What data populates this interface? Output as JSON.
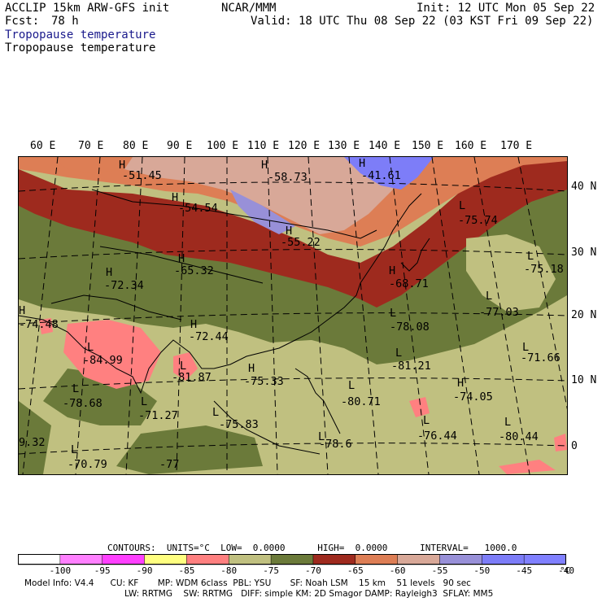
{
  "header": {
    "model": "ACCLIP 15km ARW-GFS init",
    "org": "NCAR/MMM",
    "init": "Init: 12 UTC Mon 05 Sep 22",
    "fcst_label": "Fcst:",
    "fcst_value": "78 h",
    "valid": "Valid: 18 UTC Thu 08 Sep 22 (03 KST Fri 09 Sep 22)",
    "field_title_1": "Tropopause temperature",
    "field_title_2": "Tropopause temperature"
  },
  "longitude_labels": [
    "60 E",
    "70 E",
    "80 E",
    "90 E",
    "100 E",
    "110 E",
    "120 E",
    "130 E",
    "140 E",
    "150 E",
    "160 E",
    "170 E"
  ],
  "latitude_labels": [
    "40 N",
    "30 N",
    "20 N",
    "10 N",
    "0"
  ],
  "map_labels": {
    "highs": [
      "H",
      "H",
      "H",
      "H",
      "H",
      "H",
      "H",
      "H",
      "H",
      "H",
      "H",
      "H"
    ],
    "lows": [
      "L",
      "L",
      "L",
      "L",
      "L",
      "L",
      "L",
      "L",
      "L",
      "L",
      "L",
      "L",
      "L",
      "L",
      "L",
      "L"
    ],
    "values": [
      "-51.45",
      "-58.73",
      "-41.61",
      "-54.54",
      "-55.22",
      "-65.32",
      "-72.34",
      "-75.74",
      "-75.18",
      "-68.71",
      "-77.03",
      "-74.48",
      "-72.44",
      "-78.08",
      "-84.99",
      "-81.87",
      "-75.33",
      "-81.21",
      "-71.66",
      "-78.68",
      "-71.27",
      "-80.71",
      "-74.05",
      "-75.83",
      "-76.44",
      "-80.44",
      "-78.6",
      "-70.79",
      "9.32",
      "-77"
    ]
  },
  "colorbar": {
    "contours_line": "CONTOURS:  UNITS=°C  LOW=  0.0000      HIGH=  0.0000      INTERVAL=   1000.0",
    "tick_labels": [
      "-100",
      "-95",
      "-90",
      "-85",
      "-80",
      "-75",
      "-70",
      "-65",
      "-60",
      "-55",
      "-50",
      "-45",
      "-40"
    ],
    "unit": "°C",
    "colors": [
      "#ffffff",
      "#ff80ff",
      "#ff40ff",
      "#ffff80",
      "#ff8080",
      "#c0c080",
      "#6b7a3a",
      "#9e2a1e",
      "#dd7e55",
      "#d8a898",
      "#9890d8",
      "#7d7df8",
      "#8080ff"
    ]
  },
  "footer": {
    "line1": "Model Info: V4.4      CU: KF       MP: WDM 6class  PBL: YSU       SF: Noah LSM    15 km    51 levels   90 sec",
    "line2": "LW: RRTMG    SW: RRTMG   DIFF: simple KM: 2D Smagor DAMP: Rayleigh3  SFLAY: MM5"
  }
}
